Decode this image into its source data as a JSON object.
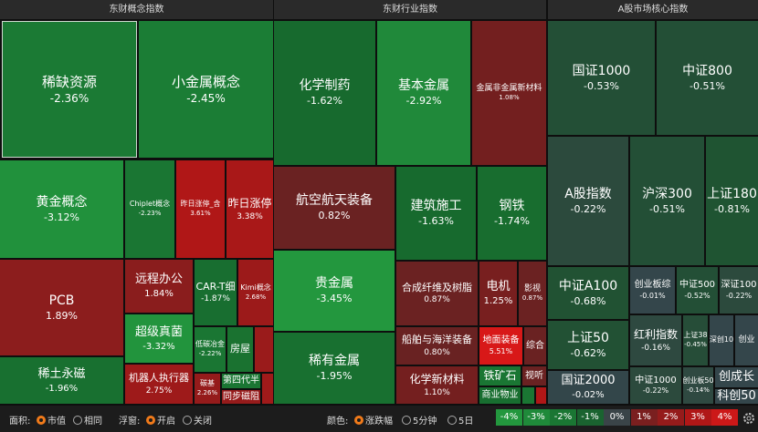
{
  "panels": [
    {
      "title": "东财概念指数",
      "tiles": [
        {
          "name": "稀缺资源",
          "change": "-2.36%",
          "color": "#1b7a34"
        },
        {
          "name": "小金属概念",
          "change": "-2.45%",
          "color": "#1b7d35"
        },
        {
          "name": "黄金概念",
          "change": "-3.12%",
          "color": "#21913c"
        },
        {
          "name": "Chiplet概念",
          "change": "-2.23%",
          "color": "#1a7633"
        },
        {
          "name": "昨日涨停_含",
          "change": "3.61%",
          "color": "#b01717"
        },
        {
          "name": "昨日涨停",
          "change": "3.38%",
          "color": "#a91818"
        },
        {
          "name": "PCB",
          "change": "1.89%",
          "color": "#8c1d1d"
        },
        {
          "name": "稀土永磁",
          "change": "-1.96%",
          "color": "#187030"
        },
        {
          "name": "远程办公",
          "change": "1.84%",
          "color": "#8a1d1d"
        },
        {
          "name": "超级真菌",
          "change": "-3.32%",
          "color": "#22943d"
        },
        {
          "name": "机器人执行器",
          "change": "2.75%",
          "color": "#9e1a1a"
        },
        {
          "name": "CAR-T细",
          "change": "-1.87%",
          "color": "#186e30"
        },
        {
          "name": "Kimi概念",
          "change": "2.68%",
          "color": "#9c1a1a"
        },
        {
          "name": "低碳冶金",
          "change": "-2.22%",
          "color": "#1a7633"
        },
        {
          "name": "房屋",
          "color": "#1a7230"
        },
        {
          "name": "碳基",
          "change": "2.26%",
          "color": "#951b1b"
        },
        {
          "name": "第四代半",
          "color": "#1a7633"
        },
        {
          "name": "同步磁阻",
          "color": "#961b1b"
        }
      ]
    },
    {
      "title": "东财行业指数",
      "tiles": [
        {
          "name": "化学制药",
          "change": "-1.62%",
          "color": "#176a2e"
        },
        {
          "name": "基本金属",
          "change": "-2.92%",
          "color": "#20893a"
        },
        {
          "name": "金属非金属新材料",
          "change": "1.08%",
          "color": "#731f1f"
        },
        {
          "name": "航空航天装备",
          "change": "0.82%",
          "color": "#6a2222"
        },
        {
          "name": "建筑施工",
          "change": "-1.63%",
          "color": "#176a2e"
        },
        {
          "name": "钢铁",
          "change": "-1.74%",
          "color": "#186d2f"
        },
        {
          "name": "贵金属",
          "change": "-3.45%",
          "color": "#23973e"
        },
        {
          "name": "稀有金属",
          "change": "-1.95%",
          "color": "#187030"
        },
        {
          "name": "合成纤维及树脂",
          "change": "0.87%",
          "color": "#6b2222"
        },
        {
          "name": "船舶与海洋装备",
          "change": "0.80%",
          "color": "#692222"
        },
        {
          "name": "化学新材料",
          "change": "1.10%",
          "color": "#741f1f"
        },
        {
          "name": "电机",
          "change": "1.25%",
          "color": "#781f1f"
        },
        {
          "name": "影视",
          "change": "0.87%",
          "color": "#6b2222"
        },
        {
          "name": "地面装备",
          "change": "5.51%",
          "color": "#d81818"
        },
        {
          "name": "综合",
          "color": "#6a2222"
        },
        {
          "name": "铁矿石",
          "color": "#1a7633"
        },
        {
          "name": "商业物业",
          "color": "#186e30"
        },
        {
          "name": "视听",
          "color": "#6a2222"
        }
      ]
    },
    {
      "title": "A股市场核心指数",
      "tiles": [
        {
          "name": "国证1000",
          "change": "-0.53%",
          "color": "#234f36"
        },
        {
          "name": "中证800",
          "change": "-0.51%",
          "color": "#234f36"
        },
        {
          "name": "A股指数",
          "change": "-0.22%",
          "color": "#2c4a3d"
        },
        {
          "name": "沪深300",
          "change": "-0.51%",
          "color": "#234f36"
        },
        {
          "name": "上证180",
          "change": "-0.81%",
          "color": "#1f5432"
        },
        {
          "name": "中证A100",
          "change": "-0.68%",
          "color": "#215233"
        },
        {
          "name": "上证50",
          "change": "-0.62%",
          "color": "#225134"
        },
        {
          "name": "国证2000",
          "change": "-0.02%",
          "color": "#33464a"
        },
        {
          "name": "创业板综",
          "change": "-0.01%",
          "color": "#34464b"
        },
        {
          "name": "中证500",
          "change": "-0.52%",
          "color": "#234f36"
        },
        {
          "name": "深证100",
          "change": "-0.22%",
          "color": "#2c4a3d"
        },
        {
          "name": "红利指数",
          "change": "-0.16%",
          "color": "#2e4940"
        },
        {
          "name": "上证38",
          "change": "-0.45%",
          "color": "#264d38"
        },
        {
          "name": "深创10",
          "color": "#34464b"
        },
        {
          "name": "创业",
          "color": "#34464b"
        },
        {
          "name": "中证1000",
          "change": "-0.22%",
          "color": "#2c4a3d"
        },
        {
          "name": "创业板50",
          "change": "-0.14%",
          "color": "#2f4941"
        },
        {
          "name": "创成长",
          "color": "#34464b"
        },
        {
          "name": "科创50",
          "color": "#34464b"
        }
      ]
    }
  ],
  "toolbar": {
    "area_label": "面积:",
    "area_options": [
      "市值",
      "相同"
    ],
    "float_label": "浮窗:",
    "float_options": [
      "开启",
      "关闭"
    ],
    "color_label": "颜色:",
    "color_options": [
      "涨跌幅",
      "5分钟",
      "5日"
    ],
    "legend": [
      {
        "label": "-4%",
        "color": "#23973e"
      },
      {
        "label": "-3%",
        "color": "#1f8a3a"
      },
      {
        "label": "-2%",
        "color": "#1a7633"
      },
      {
        "label": "-1%",
        "color": "#1a6330"
      },
      {
        "label": "0%",
        "color": "#3a4448"
      },
      {
        "label": "1%",
        "color": "#7a1f1f"
      },
      {
        "label": "2%",
        "color": "#951b1b"
      },
      {
        "label": "3%",
        "color": "#b01717"
      },
      {
        "label": "4%",
        "color": "#cc1818"
      }
    ]
  }
}
